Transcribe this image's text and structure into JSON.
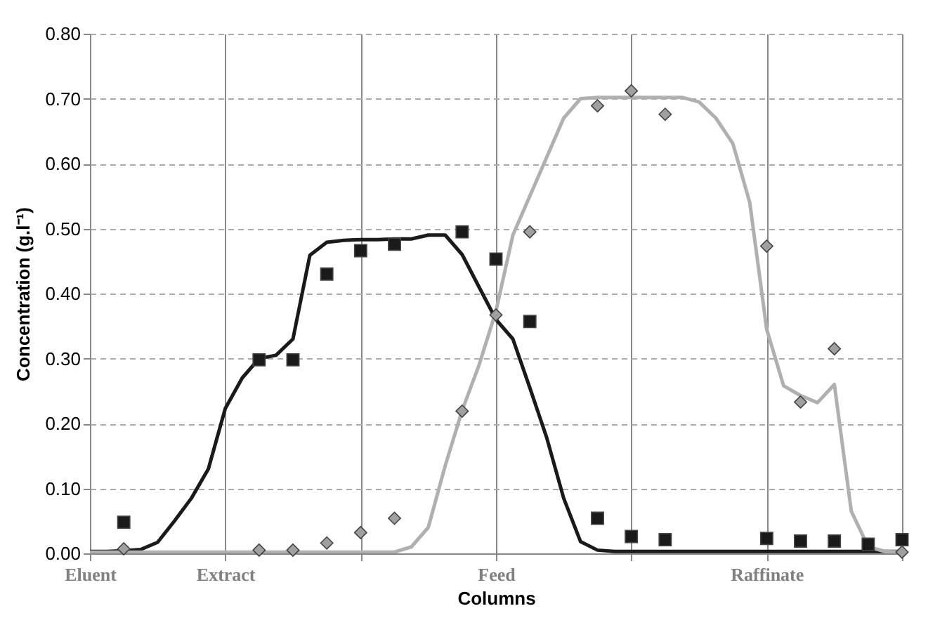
{
  "chart_data": {
    "type": "line",
    "xlabel": "Columns",
    "ylabel": "Concentration (g.l⁻¹)",
    "ylim": [
      0,
      0.8
    ],
    "categories": [
      "Eluent",
      null,
      null,
      null,
      null,
      null,
      null,
      null,
      "Extract",
      null,
      null,
      null,
      null,
      null,
      null,
      null,
      null,
      null,
      null,
      null,
      null,
      null,
      null,
      null,
      "Feed",
      null,
      null,
      null,
      null,
      null,
      null,
      null,
      null,
      null,
      null,
      null,
      null,
      null,
      null,
      null,
      "Raffinate",
      null,
      null,
      null,
      null,
      null,
      null,
      null,
      null
    ],
    "yticks": [
      {
        "value": 0,
        "label": "0.00"
      },
      {
        "value": 0.1,
        "label": "0.10"
      },
      {
        "value": 0.2,
        "label": "0.20"
      },
      {
        "value": 0.3,
        "label": "0.30"
      },
      {
        "value": 0.4,
        "label": "0.40"
      },
      {
        "value": 0.5,
        "label": "0.50"
      },
      {
        "value": 0.6,
        "label": "0.60"
      },
      {
        "value": 0.7,
        "label": "0.70"
      },
      {
        "value": 0.8,
        "label": "0.80"
      }
    ],
    "grid": true,
    "series": [
      {
        "color": "#1a1a1a",
        "marker": "none",
        "values": [
          0.003,
          0.003,
          0.004,
          0.006,
          0.017,
          0.05,
          0.085,
          0.13,
          0.223,
          0.27,
          0.3,
          0.305,
          0.33,
          0.459,
          0.479,
          0.482,
          0.483,
          0.483,
          0.484,
          0.484,
          0.49,
          0.49,
          0.46,
          0.41,
          0.36,
          0.33,
          0.255,
          0.178,
          0.085,
          0.018,
          0.005,
          0.003,
          0.003,
          0.003,
          0.003,
          0.003,
          0.003,
          0.003,
          0.003,
          0.003,
          0.003,
          0.003,
          0.003,
          0.003,
          0.003,
          0.003,
          0.003,
          0.003,
          0.003
        ]
      },
      {
        "color": "#b0b0b0",
        "marker": "none",
        "values": [
          0.002,
          0.002,
          0.002,
          0.002,
          0.002,
          0.002,
          0.002,
          0.002,
          0.002,
          0.002,
          0.002,
          0.002,
          0.002,
          0.002,
          0.002,
          0.002,
          0.002,
          0.002,
          0.002,
          0.01,
          0.04,
          0.135,
          0.22,
          0.29,
          0.373,
          0.49,
          0.55,
          0.61,
          0.67,
          0.7,
          0.702,
          0.702,
          0.702,
          0.702,
          0.702,
          0.702,
          0.695,
          0.67,
          0.631,
          0.54,
          0.345,
          0.258,
          0.243,
          0.232,
          0.26,
          0.065,
          0.01,
          0.003,
          0.002
        ]
      },
      {
        "type": "scatter",
        "color": "#1a1a1a",
        "marker": "square",
        "values": [
          null,
          null,
          0.048,
          null,
          null,
          null,
          null,
          null,
          null,
          null,
          0.298,
          null,
          0.298,
          null,
          0.43,
          null,
          0.466,
          null,
          0.476,
          null,
          null,
          null,
          0.495,
          null,
          0.453,
          null,
          0.357,
          null,
          null,
          null,
          0.054,
          null,
          0.026,
          null,
          0.021,
          null,
          null,
          null,
          null,
          null,
          0.023,
          null,
          0.019,
          null,
          0.019,
          null,
          0.014,
          null,
          0.021
        ]
      },
      {
        "type": "scatter",
        "color": "#a0a0a0",
        "marker": "diamond",
        "values": [
          null,
          null,
          0.007,
          null,
          null,
          null,
          null,
          null,
          null,
          null,
          0.005,
          null,
          0.005,
          null,
          0.016,
          null,
          0.032,
          null,
          0.054,
          null,
          null,
          null,
          0.219,
          null,
          0.367,
          null,
          0.495,
          null,
          null,
          null,
          0.689,
          null,
          0.712,
          null,
          0.676,
          null,
          null,
          null,
          null,
          null,
          0.473,
          null,
          0.233,
          null,
          0.315,
          null,
          null,
          null,
          0.002
        ]
      }
    ]
  }
}
